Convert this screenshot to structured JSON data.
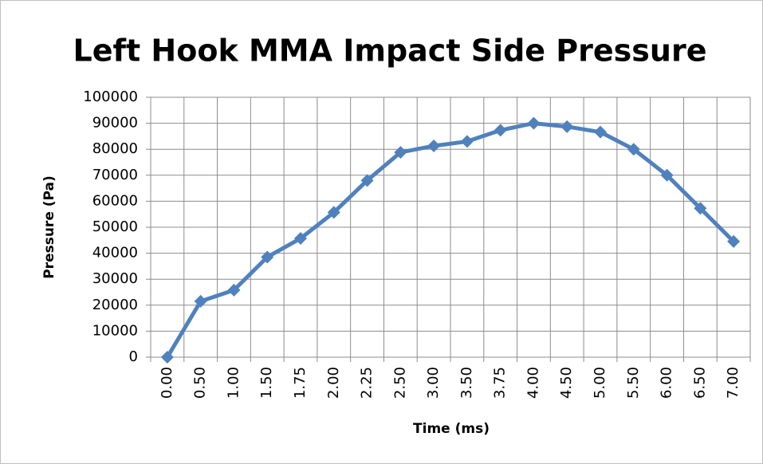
{
  "chart_data": {
    "type": "line",
    "title": "Left Hook MMA Impact Side Pressure",
    "x_label": "Time (ms)",
    "y_label": "Pressure (Pa)",
    "categories": [
      "0.00",
      "0.50",
      "1.00",
      "1.50",
      "1.75",
      "2.00",
      "2.25",
      "2.50",
      "3.00",
      "3.50",
      "3.75",
      "4.00",
      "4.50",
      "5.00",
      "5.50",
      "6.00",
      "6.50",
      "7.00"
    ],
    "values": [
      0,
      21500,
      25800,
      38500,
      45700,
      55700,
      68000,
      78800,
      81300,
      83000,
      87300,
      90000,
      88700,
      86600,
      80000,
      70000,
      57300,
      44500
    ],
    "color": "#4f81bd",
    "ylim": [
      0,
      100000
    ],
    "yticks": [
      0,
      10000,
      20000,
      30000,
      40000,
      50000,
      60000,
      70000,
      80000,
      90000,
      100000
    ],
    "grid": true
  }
}
